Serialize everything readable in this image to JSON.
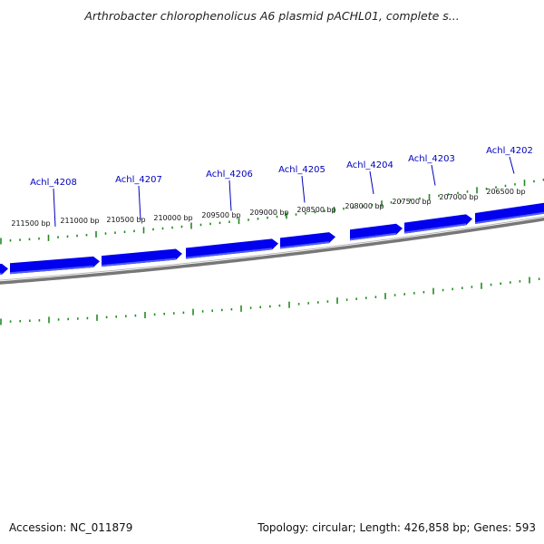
{
  "title": "Arthrobacter chlorophenolicus A6 plasmid pACHL01, complete s...",
  "footer": {
    "accession": "Accession: NC_011879",
    "topology": "Topology: circular; Length: 426,858 bp; Genes: 593"
  },
  "colors": {
    "gene_fill": "#0000ee",
    "gene_highlight": "#4d5cff",
    "gene_label": "#0000bb",
    "tick": "#228b22",
    "backbone": "#777777"
  },
  "genes": [
    {
      "name": "Achl_4208"
    },
    {
      "name": "Achl_4207"
    },
    {
      "name": "Achl_4206"
    },
    {
      "name": "Achl_4205"
    },
    {
      "name": "Achl_4204"
    },
    {
      "name": "Achl_4203"
    },
    {
      "name": "Achl_4202"
    }
  ],
  "bp_labels": [
    "211500 bp",
    "211000 bp",
    "210500 bp",
    "210000 bp",
    "209500 bp",
    "209000 bp",
    "208500 bp",
    "208000 bp",
    "207500 bp",
    "207000 bp",
    "206500 bp"
  ]
}
